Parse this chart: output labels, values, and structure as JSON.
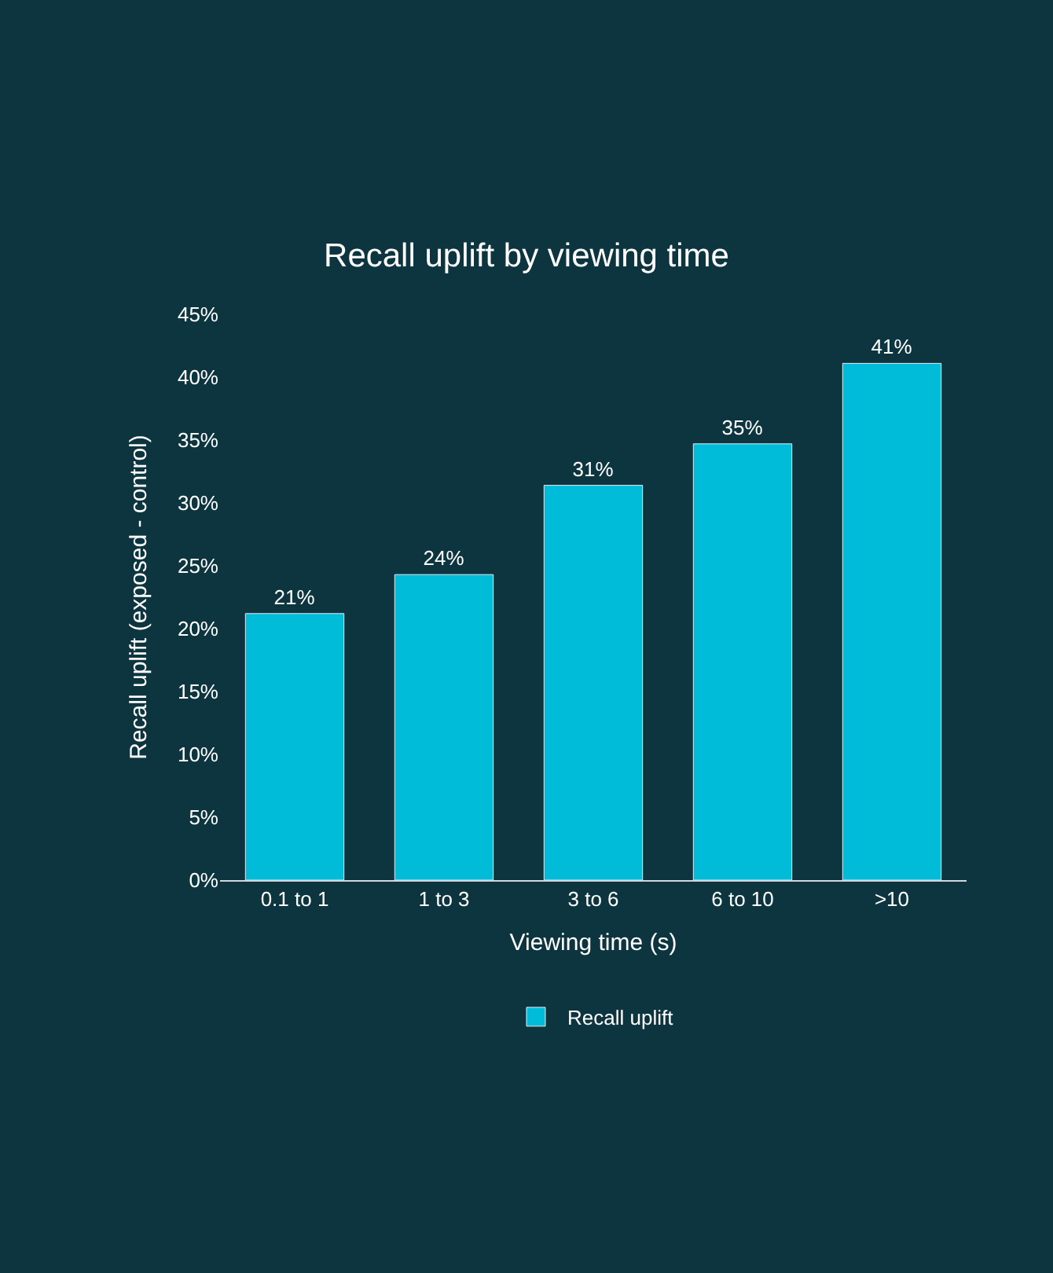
{
  "chart_data": {
    "type": "bar",
    "title": "Recall uplift by viewing time",
    "xlabel": "Viewing time (s)",
    "ylabel": "Recall uplift (exposed - control)",
    "categories": [
      "0.1 to 1",
      "1 to 3",
      "3 to 6",
      "6 to 10",
      ">10"
    ],
    "series": [
      {
        "name": "Recall uplift",
        "color": "#00bcd9",
        "values": [
          21.2,
          24.3,
          31.4,
          34.7,
          41.1
        ],
        "value_labels": [
          "21%",
          "24%",
          "31%",
          "35%",
          "41%"
        ]
      }
    ],
    "ylim": [
      0,
      45
    ],
    "yticks": [
      {
        "value": 0,
        "label": "0%"
      },
      {
        "value": 5,
        "label": "5%"
      },
      {
        "value": 10,
        "label": "10%"
      },
      {
        "value": 15,
        "label": "15%"
      },
      {
        "value": 20,
        "label": "20%"
      },
      {
        "value": 25,
        "label": "25%"
      },
      {
        "value": 30,
        "label": "30%"
      },
      {
        "value": 35,
        "label": "35%"
      },
      {
        "value": 40,
        "label": "40%"
      },
      {
        "value": 45,
        "label": "45%"
      }
    ],
    "grid": false,
    "legend": "bottom"
  }
}
